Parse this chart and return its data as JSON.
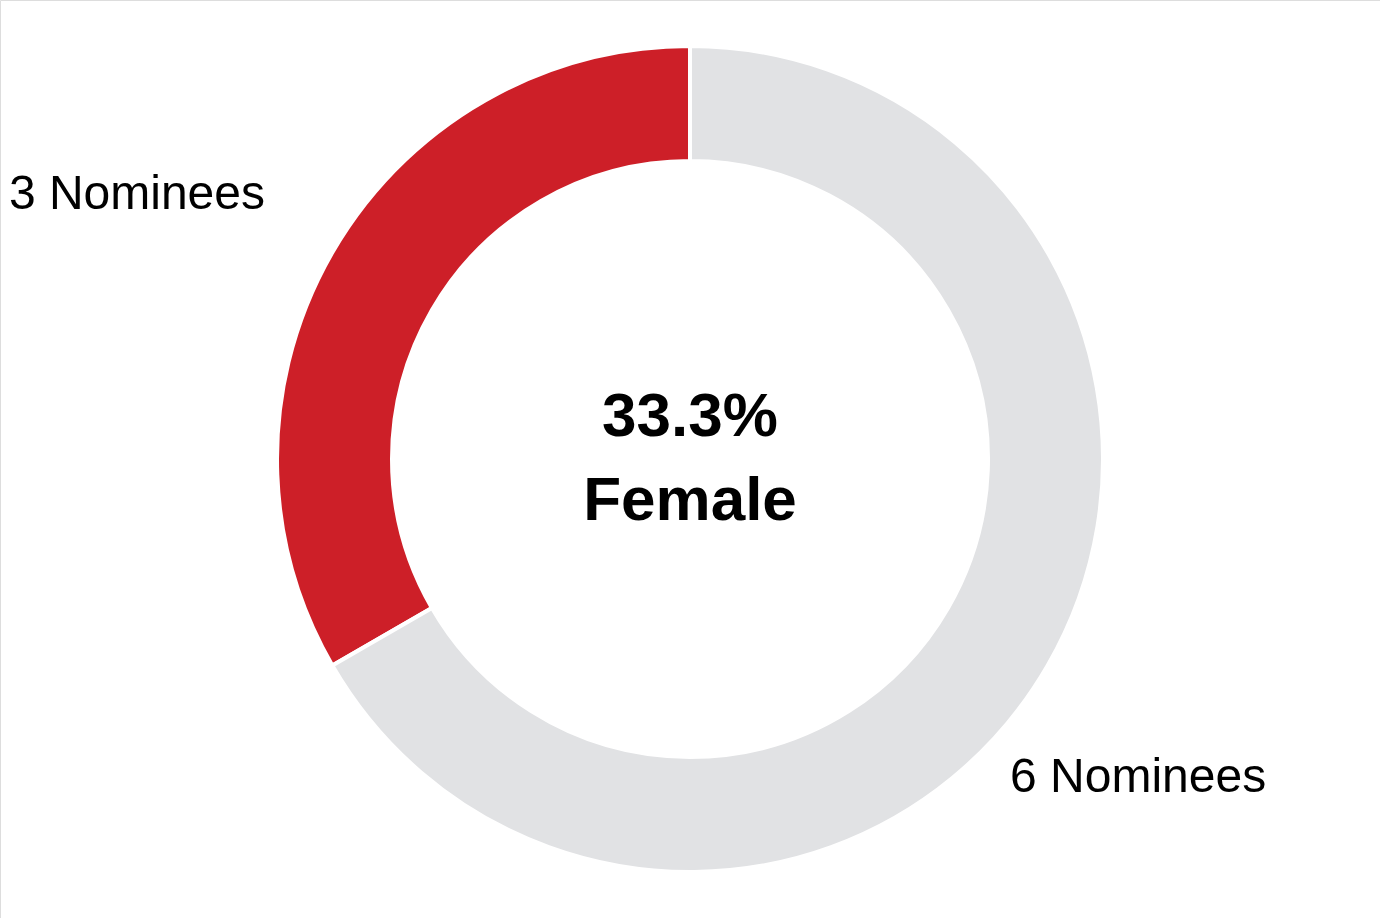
{
  "chart_data": {
    "type": "donut",
    "categories": [
      null,
      null
    ],
    "values": [
      3,
      6
    ],
    "colors": [
      "#cd1f28",
      "#e1e2e4"
    ],
    "value_labels": [
      "3 Nominees",
      "6 Nominees"
    ],
    "annotations": [
      "33.3%",
      "Female"
    ]
  }
}
